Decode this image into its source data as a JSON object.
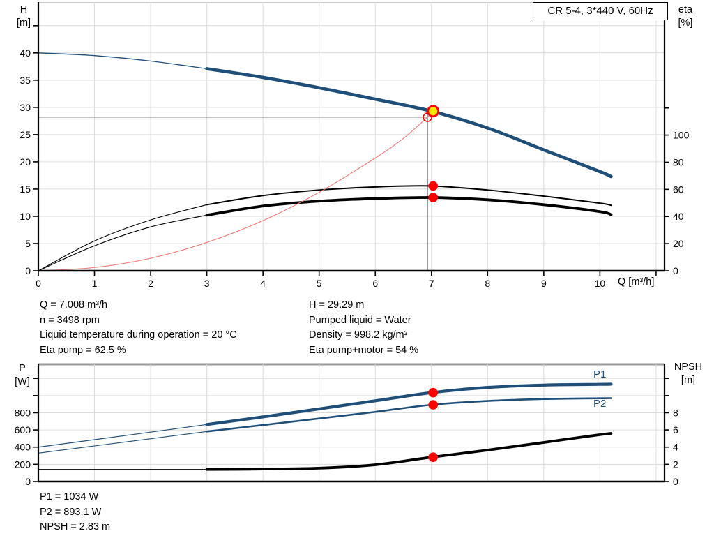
{
  "title_box": {
    "label": "CR 5-4, 3*440 V, 60Hz"
  },
  "info_top": {
    "col1": [
      "Q = 7.008 m³/h",
      "n = 3498 rpm",
      "Liquid temperature during operation = 20 °C",
      "Eta pump = 62.5 %"
    ],
    "col2": [
      "H = 29.29 m",
      "Pumped liquid = Water",
      "Density = 998.2 kg/m³",
      "Eta pump+motor = 54 %"
    ]
  },
  "info_bottom": [
    "P1 = 1034 W",
    "P2 = 893.1 W",
    "NPSH = 2.83 m"
  ],
  "colors": {
    "curve_blue": "#1f4e79",
    "curve_black": "#000000",
    "system_red": "#f08080",
    "marker_red": "#ff0000",
    "marker_yellow": "#ffe800",
    "grid": "#dcdcdc",
    "axis": "#000000",
    "crosshair": "#5f5f5f",
    "border_gray": "#9a9a9a"
  },
  "chart_data": [
    {
      "id": "head",
      "type": "line",
      "title": "CR 5-4, 3*440 V, 60Hz",
      "xlabel": "Q [m³/h]",
      "ylabel_left": [
        "H",
        "[m]"
      ],
      "ylabel_right": [
        "eta",
        "[%]"
      ],
      "xlim": [
        0,
        11.15
      ],
      "ylim_left": [
        0,
        49.2
      ],
      "ylim_right": [
        0,
        197.5
      ],
      "grid": true,
      "x_grid": [
        1,
        2,
        3,
        4,
        5,
        6,
        7,
        8,
        9,
        10,
        11
      ],
      "y_grid_left": [
        5,
        10,
        15,
        20,
        25,
        30,
        35,
        40,
        45
      ],
      "x_ticks": [
        {
          "v": 0,
          "label": "0"
        },
        {
          "v": 1,
          "label": "1"
        },
        {
          "v": 2,
          "label": "2"
        },
        {
          "v": 3,
          "label": "3"
        },
        {
          "v": 4,
          "label": "4"
        },
        {
          "v": 5,
          "label": "5"
        },
        {
          "v": 6,
          "label": "6"
        },
        {
          "v": 7,
          "label": "7"
        },
        {
          "v": 8,
          "label": "8"
        },
        {
          "v": 9,
          "label": "9"
        },
        {
          "v": 10,
          "label": "10"
        },
        {
          "v": 11,
          "label": ""
        }
      ],
      "left_ticks": [
        {
          "v": 0,
          "label": "0"
        },
        {
          "v": 5,
          "label": "5"
        },
        {
          "v": 10,
          "label": "10"
        },
        {
          "v": 15,
          "label": "15"
        },
        {
          "v": 20,
          "label": "20"
        },
        {
          "v": 25,
          "label": "25"
        },
        {
          "v": 30,
          "label": "30"
        },
        {
          "v": 35,
          "label": "35"
        },
        {
          "v": 40,
          "label": "40"
        },
        {
          "v": 45,
          "label": ""
        }
      ],
      "right_ticks": [
        {
          "v": 0,
          "label": "0"
        },
        {
          "v": 20,
          "label": "20"
        },
        {
          "v": 40,
          "label": "40"
        },
        {
          "v": 60,
          "label": "60"
        },
        {
          "v": 80,
          "label": "80"
        },
        {
          "v": 100,
          "label": "100"
        },
        {
          "v": 120,
          "label": ""
        }
      ],
      "crosshair": {
        "q": 6.93,
        "h_line": 28.2,
        "v_top": 29.3
      },
      "series": [
        {
          "name": "pump-curve",
          "label": "",
          "axis": "left",
          "color": "#1f4e79",
          "w_thin": 1.3,
          "w_thick": 4.6,
          "thick_from": 3,
          "x": [
            0,
            1,
            2,
            3,
            4,
            5,
            6,
            7,
            8,
            9,
            10,
            10.2
          ],
          "y": [
            40,
            39.5,
            38.5,
            37.1,
            35.5,
            33.6,
            31.5,
            29.3,
            26.2,
            22.2,
            18.2,
            17.3
          ]
        },
        {
          "name": "eta-pump-curve",
          "label": "",
          "axis": "right",
          "color": "#000000",
          "w_thin": 1.1,
          "w_thick": 2.0,
          "thick_from": 3,
          "x": [
            0,
            1,
            2,
            3,
            4,
            5,
            6,
            7,
            8,
            9,
            10,
            10.2
          ],
          "y": [
            0,
            22,
            37.5,
            48.7,
            55.4,
            59.5,
            61.8,
            62.5,
            59.5,
            55,
            49.8,
            48.2
          ]
        },
        {
          "name": "eta-pump-motor-curve",
          "label": "",
          "axis": "right",
          "color": "#000000",
          "w_thin": 1.1,
          "w_thick": 3.8,
          "thick_from": 3,
          "x": [
            0,
            1,
            2,
            3,
            4,
            5,
            6,
            7,
            8,
            9,
            10,
            10.2
          ],
          "y": [
            0,
            18.4,
            32.3,
            41,
            47.7,
            51.3,
            53.2,
            54,
            52.3,
            48.7,
            43.6,
            41.3
          ]
        },
        {
          "name": "system-curve",
          "label": "",
          "axis": "left",
          "color": "#f08080",
          "w_thin": 1.2,
          "x": [
            0,
            1,
            2,
            3,
            4,
            5,
            6,
            6.5,
            6.93,
            7.03
          ],
          "y": [
            0,
            0.6,
            2.3,
            5.2,
            9.2,
            14.4,
            20.7,
            24.3,
            28.2,
            29.3
          ]
        }
      ],
      "markers": [
        {
          "name": "spec-duty-point",
          "axis": "left",
          "x": 6.93,
          "y": 28.2,
          "kind": "open"
        },
        {
          "name": "duty-point",
          "axis": "left",
          "x": 7.03,
          "y": 29.3,
          "kind": "duty"
        },
        {
          "name": "eta-pump-dot",
          "axis": "right",
          "x": 7.03,
          "y": 62.5,
          "kind": "dot"
        },
        {
          "name": "eta-pump-motor-dot",
          "axis": "right",
          "x": 7.03,
          "y": 54,
          "kind": "dot"
        }
      ]
    },
    {
      "id": "power",
      "type": "line",
      "title": "",
      "xlabel": "",
      "ylabel_left": [
        "P",
        "[W]"
      ],
      "ylabel_right": [
        "NPSH",
        "[m]"
      ],
      "xlim": [
        0,
        11.15
      ],
      "ylim_left": [
        0,
        1364
      ],
      "ylim_right": [
        0,
        13.64
      ],
      "grid": true,
      "x_grid": [
        1,
        2,
        3,
        4,
        5,
        6,
        7,
        8,
        9,
        10,
        11
      ],
      "y_grid_left": [
        200,
        400,
        600,
        800,
        1000,
        1200
      ],
      "x_ticks": [],
      "left_ticks": [
        {
          "v": 0,
          "label": "0"
        },
        {
          "v": 200,
          "label": "200"
        },
        {
          "v": 400,
          "label": "400"
        },
        {
          "v": 600,
          "label": "600"
        },
        {
          "v": 800,
          "label": "800"
        },
        {
          "v": 1000,
          "label": ""
        },
        {
          "v": 1200,
          "label": ""
        }
      ],
      "right_ticks": [
        {
          "v": 0,
          "label": "0"
        },
        {
          "v": 2,
          "label": "2"
        },
        {
          "v": 4,
          "label": "4"
        },
        {
          "v": 6,
          "label": "6"
        },
        {
          "v": 8,
          "label": "8"
        },
        {
          "v": 10,
          "label": ""
        },
        {
          "v": 12,
          "label": ""
        }
      ],
      "series": [
        {
          "name": "p1-curve",
          "label": "P1",
          "axis": "left",
          "color": "#1f4e79",
          "w_thin": 1.2,
          "w_thick": 4.2,
          "thick_from": 3,
          "x": [
            0,
            1,
            2,
            3,
            4,
            5,
            6,
            7,
            8,
            9,
            10,
            10.2
          ],
          "y": [
            400,
            487,
            575,
            663,
            752,
            845,
            939,
            1034,
            1095,
            1122,
            1131,
            1133
          ]
        },
        {
          "name": "p2-curve",
          "label": "P2",
          "axis": "left",
          "color": "#1f4e79",
          "w_thin": 1.1,
          "w_thick": 2.6,
          "thick_from": 3,
          "x": [
            0,
            1,
            2,
            3,
            4,
            5,
            6,
            7,
            8,
            9,
            10,
            10.2
          ],
          "y": [
            330,
            414,
            498,
            582,
            657,
            733,
            810,
            893,
            937,
            960,
            969,
            970
          ]
        },
        {
          "name": "npsh-curve",
          "label": "",
          "axis": "right",
          "color": "#000000",
          "w_thin": 1.2,
          "w_thick": 3.8,
          "thick_from": 3,
          "x": [
            0,
            1,
            2,
            3,
            4,
            5,
            6,
            7,
            8,
            9,
            10,
            10.2
          ],
          "y": [
            1.4,
            1.4,
            1.4,
            1.4,
            1.45,
            1.55,
            1.95,
            2.83,
            3.65,
            4.55,
            5.45,
            5.6
          ]
        }
      ],
      "markers": [
        {
          "name": "p1-dot",
          "axis": "left",
          "x": 7.03,
          "y": 1034,
          "kind": "dot"
        },
        {
          "name": "p2-dot",
          "axis": "left",
          "x": 7.03,
          "y": 893,
          "kind": "dot"
        },
        {
          "name": "npsh-dot",
          "axis": "right",
          "x": 7.03,
          "y": 2.83,
          "kind": "dot"
        }
      ]
    }
  ]
}
